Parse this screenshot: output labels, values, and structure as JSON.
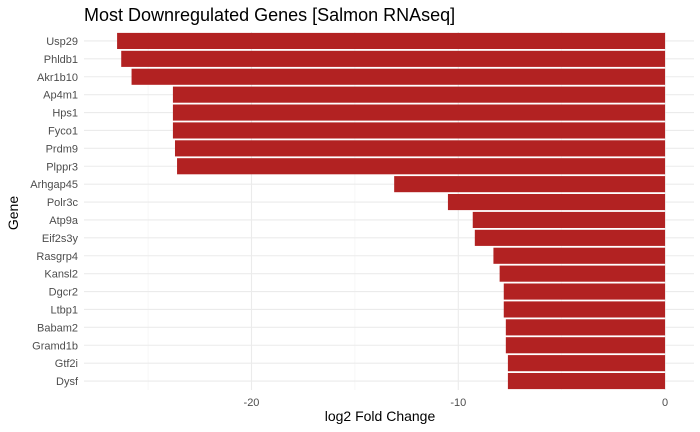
{
  "chart_data": {
    "type": "bar",
    "orientation": "horizontal",
    "title": "Most Downregulated Genes [Salmon RNAseq]",
    "xlabel": "log2 Fold Change",
    "ylabel": "Gene",
    "xlim": [
      -28.1,
      1.4
    ],
    "x_ticks": [
      -20,
      -10,
      0
    ],
    "x_tick_labels": [
      "-20",
      "-10",
      "0"
    ],
    "grid": true,
    "bar_color": "#b22222",
    "categories": [
      "Usp29",
      "Phldb1",
      "Akr1b10",
      "Ap4m1",
      "Hps1",
      "Fyco1",
      "Prdm9",
      "Plppr3",
      "Arhgap45",
      "Polr3c",
      "Atp9a",
      "Eif2s3y",
      "Rasgrp4",
      "Kansl2",
      "Dgcr2",
      "Ltbp1",
      "Babam2",
      "Gramd1b",
      "Gtf2i",
      "Dysf"
    ],
    "values": [
      -26.5,
      -26.3,
      -25.8,
      -23.8,
      -23.8,
      -23.8,
      -23.7,
      -23.6,
      -13.1,
      -10.5,
      -9.3,
      -9.2,
      -8.3,
      -8.0,
      -7.8,
      -7.8,
      -7.7,
      -7.7,
      -7.6,
      -7.6
    ]
  }
}
